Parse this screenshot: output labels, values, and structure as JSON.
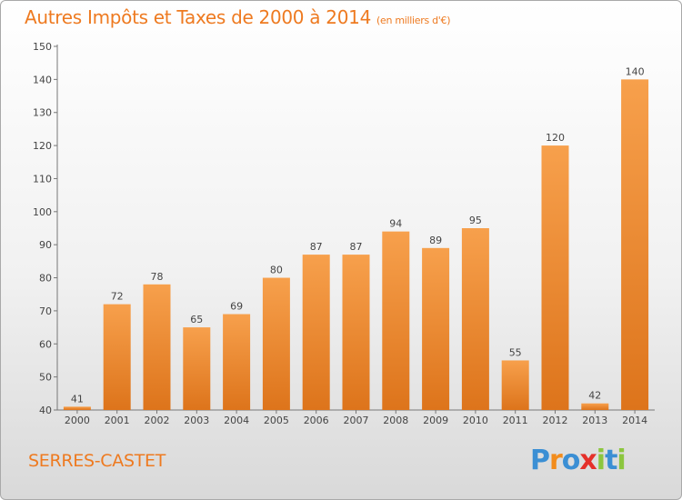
{
  "chart_data": {
    "type": "bar",
    "title": "Autres Impôts et Taxes de 2000 à 2014",
    "subtitle": "(en milliers d'€)",
    "categories": [
      "2000",
      "2001",
      "2002",
      "2003",
      "2004",
      "2005",
      "2006",
      "2007",
      "2008",
      "2009",
      "2010",
      "2011",
      "2012",
      "2013",
      "2014"
    ],
    "values": [
      41,
      72,
      78,
      65,
      69,
      80,
      87,
      87,
      94,
      89,
      95,
      55,
      120,
      42,
      140
    ],
    "ylim": [
      40,
      150
    ],
    "yticks": [
      40,
      50,
      60,
      70,
      80,
      90,
      100,
      110,
      120,
      130,
      140,
      150
    ],
    "xlabel": "",
    "ylabel": "",
    "grid": false,
    "bar_color": "#f0923a"
  },
  "commune": "SERRES-CASTET",
  "brand": {
    "letters": [
      "P",
      "r",
      "o",
      "x",
      "i",
      "t",
      "i"
    ],
    "colors": [
      "#3b8fd4",
      "#f28c1c",
      "#3b8fd4",
      "#e5302a",
      "#8cc63f",
      "#3b8fd4",
      "#8cc63f"
    ]
  }
}
